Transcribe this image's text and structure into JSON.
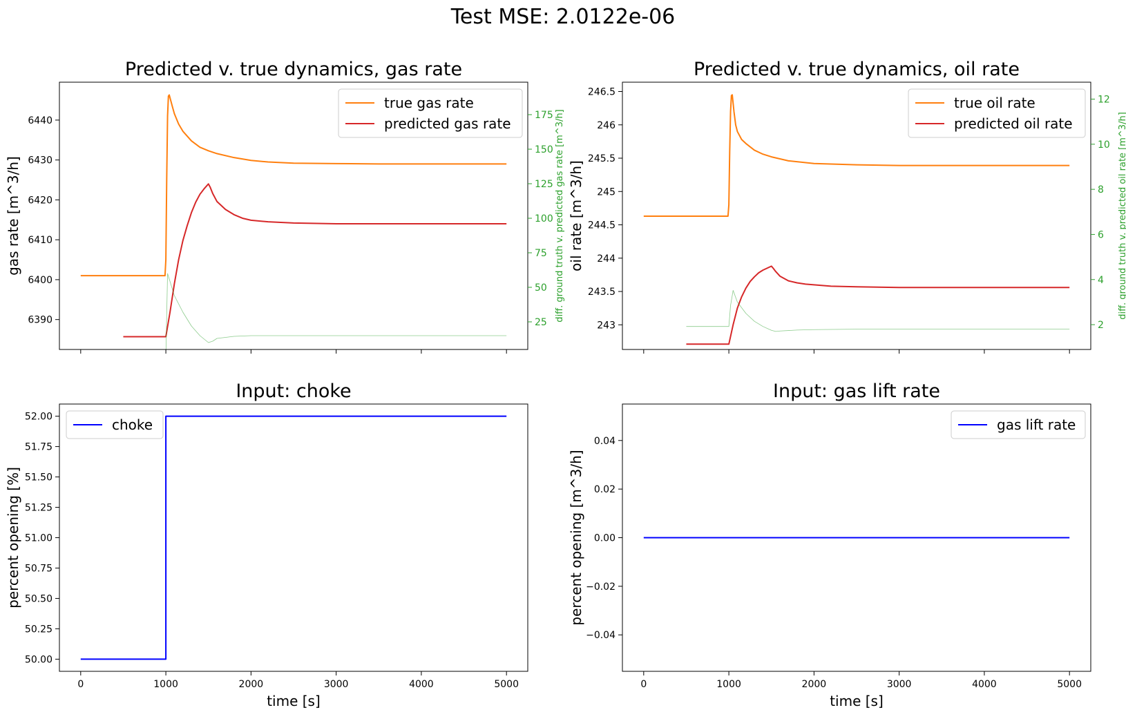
{
  "figure": {
    "suptitle": "Test MSE: 2.0122e-06"
  },
  "colors": {
    "true_series": "#ff7f0e",
    "predicted_series": "#d62728",
    "diff_series": "#2ca02c",
    "input_series": "#0000ff",
    "axes": "#000000"
  },
  "chart_data": [
    {
      "type": "line",
      "title": "Predicted v. true dynamics, gas rate",
      "xlabel": "",
      "ylabel": "gas rate [m^3/h]",
      "ylabel_right": "diff. ground truth v. predicted gas rate [m^3/h]",
      "xlim": [
        -250,
        5250
      ],
      "ylim": [
        6382.5,
        6449.5
      ],
      "ylim_right": [
        5,
        198.5
      ],
      "xticks": [
        0,
        1000,
        2000,
        3000,
        4000,
        5000
      ],
      "xtick_labels_visible": false,
      "yticks": [
        6390,
        6400,
        6410,
        6420,
        6430,
        6440
      ],
      "yticks_right": [
        25,
        50,
        75,
        100,
        125,
        150,
        175
      ],
      "grid": false,
      "legend_position": "top-right",
      "series": [
        {
          "name": "true gas rate",
          "color": "#ff7f0e",
          "axis": "left",
          "x": [
            0,
            990,
            1000,
            1010,
            1020,
            1030,
            1040,
            1050,
            1075,
            1100,
            1150,
            1200,
            1300,
            1400,
            1500,
            1600,
            1800,
            2000,
            2200,
            2500,
            3000,
            3500,
            4000,
            4500,
            5000
          ],
          "y": [
            6401,
            6401,
            6405,
            6425,
            6441,
            6446,
            6446.3,
            6445.5,
            6443.5,
            6441.6,
            6439,
            6437.2,
            6434.8,
            6433.2,
            6432.3,
            6431.6,
            6430.6,
            6429.9,
            6429.5,
            6429.2,
            6429.1,
            6429,
            6429,
            6429,
            6429
          ]
        },
        {
          "name": "predicted gas rate",
          "color": "#d62728",
          "axis": "left",
          "x": [
            500,
            1000,
            1050,
            1100,
            1150,
            1200,
            1250,
            1300,
            1350,
            1400,
            1450,
            1500,
            1520,
            1550,
            1600,
            1700,
            1800,
            1900,
            2000,
            2200,
            2500,
            3000,
            3500,
            4000,
            4500,
            5000
          ],
          "y": [
            6385.7,
            6385.7,
            6392,
            6399,
            6405,
            6409.8,
            6413.5,
            6416.8,
            6419.4,
            6421.4,
            6422.8,
            6424,
            6423.2,
            6421.6,
            6419.6,
            6417.6,
            6416.3,
            6415.4,
            6414.9,
            6414.5,
            6414.2,
            6414,
            6414,
            6414,
            6414,
            6414
          ]
        },
        {
          "name": "",
          "color": "#2ca02c",
          "axis": "right",
          "linewidth": "thin",
          "x": [
            0,
            1000,
            1020,
            1050,
            1100,
            1200,
            1300,
            1400,
            1500,
            1550,
            1600,
            1800,
            2000,
            2500,
            3000,
            4000,
            5000
          ],
          "y": [
            null,
            0,
            60,
            54,
            44,
            32,
            22,
            15,
            10,
            11,
            13,
            14.5,
            15,
            15,
            15,
            15,
            15
          ]
        }
      ]
    },
    {
      "type": "line",
      "title": "Predicted v. true dynamics, oil rate",
      "xlabel": "",
      "ylabel": "oil rate [m^3/h]",
      "ylabel_right": "diff. ground truth v. predicted oil rate [m^3/h]",
      "xlim": [
        -250,
        5250
      ],
      "ylim": [
        242.63,
        246.64
      ],
      "ylim_right": [
        0.9,
        12.75
      ],
      "xticks": [
        0,
        1000,
        2000,
        3000,
        4000,
        5000
      ],
      "xtick_labels_visible": false,
      "yticks": [
        243.0,
        243.5,
        244.0,
        244.5,
        245.0,
        245.5,
        246.0,
        246.5
      ],
      "yticks_right": [
        2,
        4,
        6,
        8,
        10,
        12
      ],
      "grid": false,
      "legend_position": "top-right",
      "series": [
        {
          "name": "true oil rate",
          "color": "#ff7f0e",
          "axis": "left",
          "x": [
            0,
            990,
            1000,
            1010,
            1020,
            1030,
            1040,
            1060,
            1080,
            1100,
            1150,
            1200,
            1300,
            1400,
            1500,
            1700,
            2000,
            2500,
            3000,
            4000,
            5000
          ],
          "y": [
            244.63,
            244.63,
            244.8,
            245.6,
            246.2,
            246.44,
            246.45,
            246.2,
            246.0,
            245.9,
            245.78,
            245.72,
            245.62,
            245.56,
            245.52,
            245.46,
            245.42,
            245.4,
            245.39,
            245.39,
            245.39
          ]
        },
        {
          "name": "predicted oil rate",
          "color": "#d62728",
          "axis": "left",
          "x": [
            500,
            1000,
            1050,
            1100,
            1150,
            1200,
            1250,
            1300,
            1350,
            1400,
            1450,
            1500,
            1520,
            1550,
            1600,
            1700,
            1800,
            1900,
            2000,
            2200,
            2500,
            3000,
            3500,
            4000,
            4500,
            5000
          ],
          "y": [
            242.71,
            242.71,
            243.0,
            243.25,
            243.42,
            243.55,
            243.65,
            243.72,
            243.78,
            243.82,
            243.85,
            243.88,
            243.85,
            243.8,
            243.73,
            243.66,
            243.63,
            243.61,
            243.6,
            243.58,
            243.57,
            243.56,
            243.56,
            243.56,
            243.56,
            243.56
          ]
        },
        {
          "name": "",
          "color": "#2ca02c",
          "axis": "right",
          "linewidth": "thin",
          "x": [
            500,
            1000,
            1020,
            1050,
            1100,
            1200,
            1300,
            1400,
            1500,
            1550,
            1600,
            1800,
            2000,
            2500,
            3000,
            4000,
            5000
          ],
          "y": [
            1.92,
            1.92,
            2.85,
            3.52,
            3.0,
            2.5,
            2.15,
            1.92,
            1.75,
            1.7,
            1.72,
            1.76,
            1.78,
            1.8,
            1.8,
            1.8,
            1.8
          ]
        }
      ]
    },
    {
      "type": "line",
      "title": "Input: choke",
      "xlabel": "time [s]",
      "ylabel": "percent opening [%]",
      "xlim": [
        -250,
        5250
      ],
      "ylim": [
        49.9,
        52.1
      ],
      "xticks": [
        0,
        1000,
        2000,
        3000,
        4000,
        5000
      ],
      "xtick_labels": [
        "0",
        "1000",
        "2000",
        "3000",
        "4000",
        "5000"
      ],
      "yticks": [
        50.0,
        50.25,
        50.5,
        50.75,
        51.0,
        51.25,
        51.5,
        51.75,
        52.0
      ],
      "ytick_labels": [
        "50.00",
        "50.25",
        "50.50",
        "50.75",
        "51.00",
        "51.25",
        "51.50",
        "51.75",
        "52.00"
      ],
      "grid": false,
      "legend_position": "top-left",
      "series": [
        {
          "name": "choke",
          "color": "#0000ff",
          "axis": "left",
          "x": [
            0,
            1000,
            1000,
            5000
          ],
          "y": [
            50.0,
            50.0,
            52.0,
            52.0
          ]
        }
      ]
    },
    {
      "type": "line",
      "title": "Input: gas lift rate",
      "xlabel": "time [s]",
      "ylabel": "percent opening [m^3/h]",
      "xlim": [
        -250,
        5250
      ],
      "ylim": [
        -0.055,
        0.055
      ],
      "xticks": [
        0,
        1000,
        2000,
        3000,
        4000,
        5000
      ],
      "xtick_labels": [
        "0",
        "1000",
        "2000",
        "3000",
        "4000",
        "5000"
      ],
      "yticks": [
        -0.04,
        -0.02,
        0.0,
        0.02,
        0.04
      ],
      "ytick_labels": [
        "−0.04",
        "−0.02",
        "0.00",
        "0.02",
        "0.04"
      ],
      "grid": false,
      "legend_position": "top-right",
      "series": [
        {
          "name": "gas lift rate",
          "color": "#0000ff",
          "axis": "left",
          "x": [
            0,
            5000
          ],
          "y": [
            0.0,
            0.0
          ]
        }
      ]
    }
  ]
}
